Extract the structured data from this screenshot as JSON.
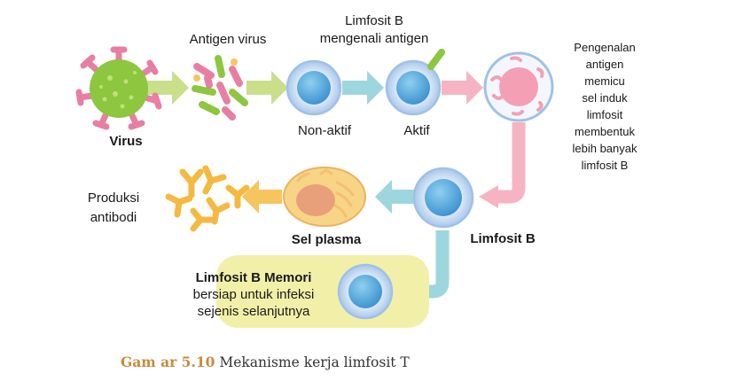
{
  "labels": {
    "virus": "Virus",
    "antigen_virus": "Antigen virus",
    "limfosit_b_mengenali_line1": "Limfosit B",
    "limfosit_b_mengenali_line2": "mengenali antigen",
    "non_aktif": "Non-aktif",
    "aktif": "Aktif",
    "pengenalan": [
      "Pengenalan",
      "antigen",
      "memicu",
      "sel induk",
      "limfosit",
      "membentuk",
      "lebih banyak",
      "limfosit B"
    ],
    "produksi_line1": "Produksi",
    "produksi_line2": "antibodi",
    "sel_plasma": "Sel plasma",
    "limfosit_b": "Limfosit B",
    "memori_title": "Limfosit B Memori",
    "memori_line1": "bersiap untuk infeksi",
    "memori_line2": "sejenis selanjutnya"
  },
  "caption": {
    "figure": "Gam  ar 5.10",
    "text": " Mekanisme kerja limfosit T"
  },
  "colors": {
    "green_arrow": "#c9df8a",
    "blue_arrow": "#9ed6dd",
    "pink_arrow": "#f6b4c2",
    "orange_arrow": "#f7c55e",
    "memory_box": "#f2f0a8",
    "cell_membrane": "#cfe1f5",
    "cell_nucleus": "#5aa9dc",
    "virus_body": "#8dc63f",
    "virus_spike": "#e87fa3",
    "plasma_cell": "#f8d486",
    "antibody": "#f5b942"
  }
}
